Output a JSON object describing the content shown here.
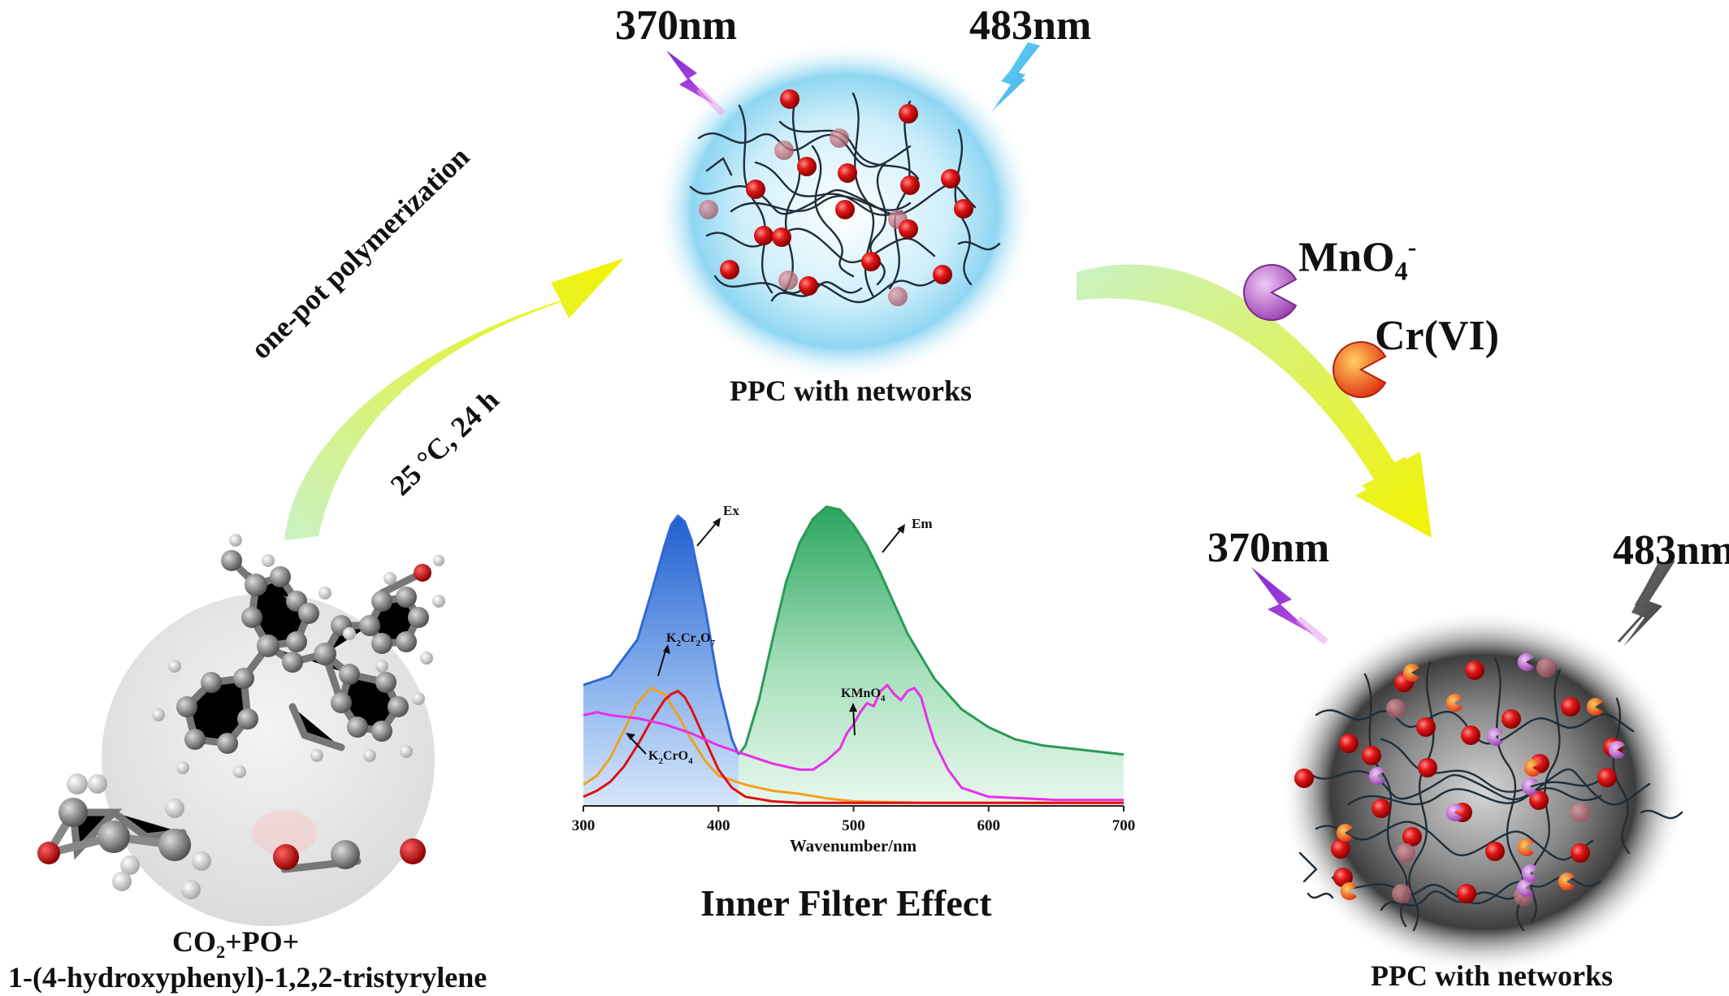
{
  "top": {
    "excitation": "370nm",
    "emission": "483nm",
    "caption": "PPC with networks"
  },
  "arrow_left": {
    "line1": "one-pot polymerization",
    "line2": "25 °C, 24 h"
  },
  "arrow_right": {
    "analyte1_base": "MnO",
    "analyte1_sub": "4",
    "analyte1_sup": "-",
    "analyte2": "Cr(VI)"
  },
  "bottom_right": {
    "excitation": "370nm",
    "emission": "483nm",
    "caption": "PPC with networks"
  },
  "bottom_left": {
    "line1_a": "CO",
    "line1_sub": "2",
    "line1_b": "+PO+",
    "line2": "1-(4-hydroxyphenyl)-1,2,2-tristyrylene"
  },
  "center_title": "Inner Filter Effect",
  "colors": {
    "arrow_start": "#c9f2c4",
    "arrow_end": "#f2f200",
    "bead": "#e01818",
    "network": "#1f2e3a",
    "glow_blue": "#8fd6f2",
    "glow_gray": "#3a3a3a",
    "mno4": "#b060c0",
    "cr": "#e85a20"
  },
  "chart_data": {
    "type": "line",
    "xlabel": "Wavenumber/nm",
    "ylabel": "",
    "xlim": [
      300,
      700
    ],
    "ylim": [
      0,
      1
    ],
    "xticks": [
      300,
      400,
      500,
      600,
      700
    ],
    "series": [
      {
        "name": "Ex",
        "color": "#2f68d8",
        "fill": "blue",
        "x": [
          300,
          320,
          340,
          350,
          360,
          365,
          370,
          375,
          380,
          390,
          400,
          410,
          415
        ],
        "y": [
          0.4,
          0.43,
          0.55,
          0.7,
          0.86,
          0.93,
          0.96,
          0.94,
          0.88,
          0.66,
          0.4,
          0.22,
          0.17
        ]
      },
      {
        "name": "Em",
        "color": "#2a9a55",
        "fill": "green",
        "x": [
          415,
          420,
          430,
          440,
          450,
          460,
          470,
          480,
          490,
          500,
          510,
          520,
          530,
          540,
          560,
          580,
          600,
          620,
          640,
          660,
          680,
          700
        ],
        "y": [
          0.17,
          0.2,
          0.35,
          0.55,
          0.74,
          0.87,
          0.95,
          0.99,
          0.98,
          0.93,
          0.86,
          0.77,
          0.67,
          0.57,
          0.42,
          0.32,
          0.26,
          0.22,
          0.2,
          0.19,
          0.18,
          0.17
        ]
      },
      {
        "name": "K2Cr2O7",
        "color": "#f0a020",
        "x": [
          300,
          310,
          320,
          330,
          340,
          350,
          360,
          370,
          380,
          390,
          400,
          420,
          440,
          460,
          480,
          500,
          550,
          600,
          650,
          700
        ],
        "y": [
          0.07,
          0.1,
          0.16,
          0.25,
          0.34,
          0.39,
          0.37,
          0.3,
          0.22,
          0.15,
          0.1,
          0.07,
          0.05,
          0.04,
          0.025,
          0.015,
          0.01,
          0.01,
          0.01,
          0.01
        ]
      },
      {
        "name": "K2CrO4",
        "color": "#e01010",
        "x": [
          300,
          310,
          320,
          330,
          340,
          350,
          360,
          365,
          370,
          375,
          380,
          390,
          400,
          410,
          420,
          440,
          460,
          500,
          550,
          600,
          700
        ],
        "y": [
          0.03,
          0.05,
          0.08,
          0.13,
          0.2,
          0.28,
          0.35,
          0.37,
          0.38,
          0.36,
          0.32,
          0.22,
          0.12,
          0.06,
          0.03,
          0.015,
          0.01,
          0.01,
          0.01,
          0.01,
          0.01
        ]
      },
      {
        "name": "KMnO4",
        "color": "#e830e8",
        "x": [
          300,
          310,
          320,
          340,
          360,
          380,
          400,
          420,
          440,
          460,
          470,
          480,
          490,
          495,
          500,
          505,
          510,
          515,
          520,
          525,
          530,
          535,
          540,
          545,
          550,
          555,
          560,
          570,
          580,
          600,
          650,
          700
        ],
        "y": [
          0.3,
          0.31,
          0.3,
          0.29,
          0.27,
          0.24,
          0.2,
          0.17,
          0.14,
          0.12,
          0.12,
          0.15,
          0.19,
          0.24,
          0.27,
          0.31,
          0.34,
          0.33,
          0.38,
          0.4,
          0.37,
          0.35,
          0.38,
          0.39,
          0.36,
          0.28,
          0.21,
          0.12,
          0.06,
          0.03,
          0.02,
          0.02
        ]
      }
    ],
    "annotations": [
      "Ex",
      "Em",
      "K2Cr2O7",
      "K2CrO4",
      "KMnO4"
    ],
    "labels": {
      "ex": "Ex",
      "em": "Em",
      "kcr2_a": "K",
      "kcr2_s1": "2",
      "kcr2_b": "Cr",
      "kcr2_s2": "2",
      "kcr2_c": "O",
      "kcr2_s3": "7",
      "kcro_a": "K",
      "kcro_s1": "2",
      "kcro_b": "CrO",
      "kcro_s2": "4",
      "kmn_a": "KMnO",
      "kmn_s": "4"
    },
    "grid": false
  }
}
